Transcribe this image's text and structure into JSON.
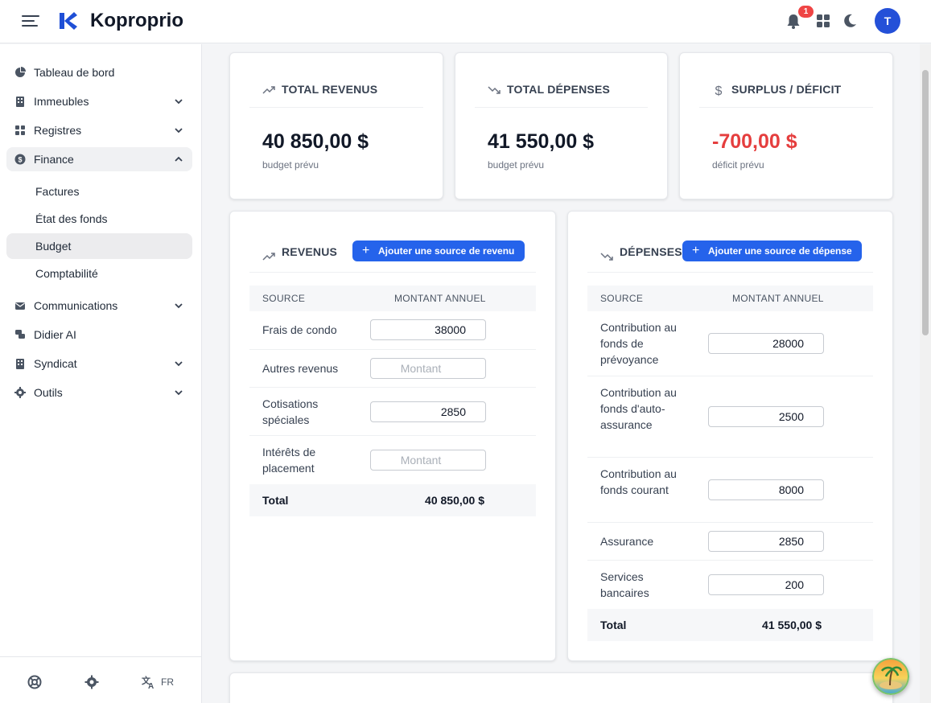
{
  "app": {
    "brand": "Koproprio",
    "notification_count": "1",
    "avatar_initial": "T"
  },
  "sidebar": {
    "items": [
      {
        "label": "Tableau de bord",
        "icon": "chart-pie-icon"
      },
      {
        "label": "Immeubles",
        "icon": "building-icon"
      },
      {
        "label": "Registres",
        "icon": "grid-icon"
      },
      {
        "label": "Finance",
        "icon": "dollar-circle-icon"
      },
      {
        "label": "Communications",
        "icon": "envelope-icon"
      },
      {
        "label": "Didier AI",
        "icon": "chat-icon"
      },
      {
        "label": "Syndicat",
        "icon": "building-icon"
      },
      {
        "label": "Outils",
        "icon": "gear-icon"
      }
    ],
    "finance_sub": [
      "Factures",
      "État des fonds",
      "Budget",
      "Comptabilité"
    ],
    "footer": {
      "lang": "FR"
    }
  },
  "stats": {
    "revenus": {
      "title": "TOTAL REVENUS",
      "value": "40 850,00 $",
      "note": "budget prévu"
    },
    "depenses": {
      "title": "TOTAL DÉPENSES",
      "value": "41 550,00 $",
      "note": "budget prévu"
    },
    "surplus": {
      "title": "SURPLUS / DÉFICIT",
      "value": "-700,00 $",
      "note": "déficit prévu"
    }
  },
  "revenus": {
    "title": "REVENUS",
    "add_label": "Ajouter une source de revenu",
    "col_source": "SOURCE",
    "col_amount": "MONTANT ANNUEL",
    "placeholder": "Montant",
    "rows": [
      {
        "source": "Frais de condo",
        "amount": "38000"
      },
      {
        "source": "Autres revenus",
        "amount": ""
      },
      {
        "source": "Cotisations spéciales",
        "amount": "2850"
      },
      {
        "source": "Intérêts de placement",
        "amount": ""
      }
    ],
    "total_label": "Total",
    "total_value": "40 850,00 $"
  },
  "depenses": {
    "title": "DÉPENSES",
    "add_label": "Ajouter une source de dépense",
    "col_source": "SOURCE",
    "col_amount": "MONTANT ANNUEL",
    "placeholder": "Montant",
    "rows": [
      {
        "source": "Contribution au fonds de prévoyance",
        "amount": "28000"
      },
      {
        "source": "Contribution au fonds d'auto-assurance",
        "amount": "2500"
      },
      {
        "source": "Contribution au fonds courant",
        "amount": "8000"
      },
      {
        "source": "Assurance",
        "amount": "2850"
      },
      {
        "source": "Services bancaires",
        "amount": "200"
      }
    ],
    "total_label": "Total",
    "total_value": "41 550,00 $"
  },
  "colors": {
    "accent": "#2563eb",
    "negative": "#e53e3e",
    "brand": "#1f4fd6"
  }
}
